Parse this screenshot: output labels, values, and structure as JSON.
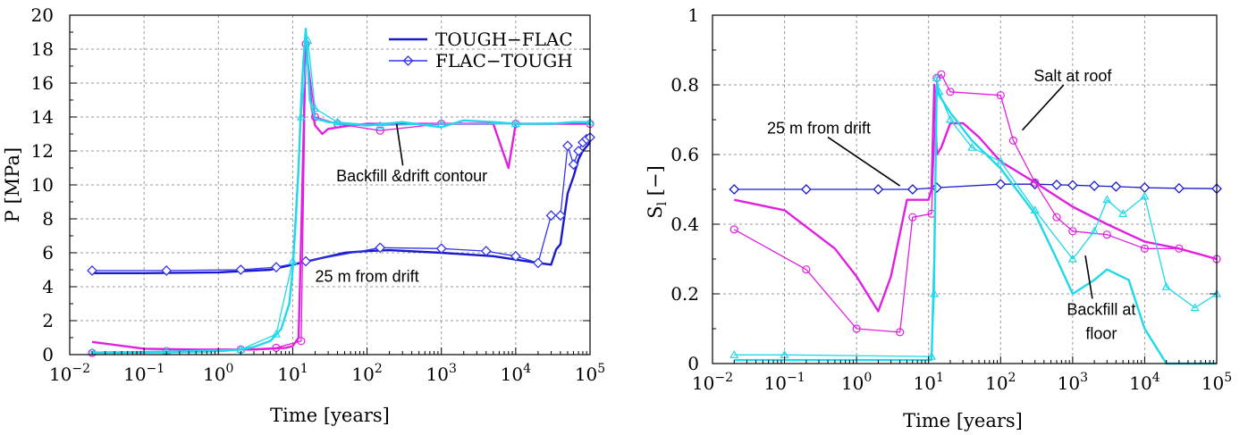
{
  "chart_data": [
    {
      "type": "line",
      "title": "",
      "xlabel": "Time [years]",
      "ylabel": "P [MPa]",
      "xscale": "log",
      "xlim": [
        0.01,
        100000
      ],
      "ylim": [
        0,
        20
      ],
      "xticks": [
        {
          "value": 0.01,
          "base": "10",
          "exp": "−2"
        },
        {
          "value": 0.1,
          "base": "10",
          "exp": "−1"
        },
        {
          "value": 1,
          "base": "10",
          "exp": "0"
        },
        {
          "value": 10,
          "base": "10",
          "exp": "1"
        },
        {
          "value": 100,
          "base": "10",
          "exp": "2"
        },
        {
          "value": 1000,
          "base": "10",
          "exp": "3"
        },
        {
          "value": 10000,
          "base": "10",
          "exp": "4"
        },
        {
          "value": 100000,
          "base": "10",
          "exp": "5"
        }
      ],
      "yticks": [
        0,
        2,
        4,
        6,
        8,
        10,
        12,
        14,
        16,
        18,
        20
      ],
      "grid": true,
      "legend": {
        "position": "top-right",
        "entries": [
          {
            "label": "TOUGH−FLAC",
            "color": "#1a1acc",
            "marker": "none"
          },
          {
            "label": "FLAC−TOUGH",
            "color": "#3333ee",
            "marker": "diamond"
          }
        ]
      },
      "annotations": [
        {
          "text": "Backfill &drift contour",
          "x": 400,
          "y": 10.2,
          "pointer_to": [
            250,
            13.6
          ]
        },
        {
          "text": "25 m from drift",
          "x": 100,
          "y": 4.3
        }
      ],
      "series": [
        {
          "name": "TOUGH−FLAC",
          "color": "#1a1acc",
          "marker": "none",
          "x": [
            0.02,
            0.1,
            1,
            5,
            10,
            20,
            50,
            100,
            200,
            1000,
            5000,
            20000,
            30000,
            35000,
            40000,
            50000,
            60000,
            70000,
            80000,
            100000
          ],
          "y": [
            4.8,
            4.8,
            4.85,
            5.0,
            5.3,
            5.6,
            6.0,
            6.1,
            6.15,
            6.0,
            5.8,
            5.4,
            5.3,
            6.2,
            6.5,
            9.5,
            10.5,
            11.5,
            12.0,
            12.5
          ]
        },
        {
          "color": "#3333ee",
          "marker": "diamond",
          "x": [
            0.02,
            0.2,
            2,
            6,
            15,
            150,
            1000,
            4000,
            10000,
            20000,
            30000,
            40000,
            50000,
            60000,
            70000,
            80000,
            90000,
            100000
          ],
          "y": [
            4.95,
            4.95,
            5.0,
            5.15,
            5.5,
            6.3,
            6.25,
            6.1,
            5.8,
            5.4,
            8.2,
            8.2,
            12.3,
            11.2,
            12.0,
            12.5,
            12.7,
            12.8
          ]
        },
        {
          "color": "#e020e0",
          "marker": "none",
          "x": [
            0.02,
            0.1,
            0.5,
            1,
            3,
            5,
            8,
            10,
            12,
            13,
            15,
            18,
            20,
            25,
            30,
            60,
            100,
            300,
            1000,
            5000,
            8000,
            10000,
            30000,
            100000
          ],
          "y": [
            0.75,
            0.35,
            0.3,
            0.3,
            0.3,
            0.35,
            0.4,
            0.5,
            1.0,
            7.0,
            18.5,
            14.5,
            13.5,
            13.0,
            13.3,
            13.5,
            13.6,
            13.6,
            13.6,
            13.6,
            11.0,
            13.6,
            13.6,
            13.6
          ]
        },
        {
          "color": "#e020e0",
          "marker": "circle",
          "x": [
            0.02,
            0.2,
            2,
            6,
            13,
            15,
            20,
            40,
            150,
            1000,
            10000,
            100000
          ],
          "y": [
            0.1,
            0.2,
            0.3,
            0.4,
            0.8,
            18.3,
            14.0,
            13.6,
            13.2,
            13.6,
            13.6,
            13.6
          ]
        },
        {
          "color": "#20d8e8",
          "marker": "none",
          "x": [
            0.02,
            0.1,
            0.5,
            1,
            2,
            3,
            5,
            7,
            9,
            10,
            11,
            12,
            13,
            14,
            15,
            17,
            20,
            25,
            30,
            50,
            100,
            300,
            1000,
            2000,
            5000,
            10000,
            30000,
            60000,
            100000
          ],
          "y": [
            0.1,
            0.12,
            0.15,
            0.2,
            0.3,
            0.45,
            0.8,
            1.5,
            3.0,
            5.0,
            8.0,
            11.0,
            15.0,
            17.5,
            19.2,
            15.0,
            13.9,
            13.8,
            13.7,
            13.6,
            13.5,
            13.7,
            13.4,
            13.8,
            13.7,
            13.6,
            13.6,
            13.7,
            13.7
          ]
        },
        {
          "color": "#20d8e8",
          "marker": "triangle",
          "x": [
            0.02,
            0.2,
            2,
            6,
            10,
            13,
            16,
            20,
            40,
            150,
            1000,
            10000,
            100000
          ],
          "y": [
            0.15,
            0.2,
            0.3,
            1.2,
            5.5,
            14.0,
            18.5,
            14.5,
            13.7,
            13.5,
            13.6,
            13.6,
            13.7
          ]
        }
      ]
    },
    {
      "type": "line",
      "title": "",
      "xlabel": "Time [years]",
      "ylabel": "S",
      "ylabel_sub": "l",
      "ylabel_unit": " [−]",
      "xscale": "log",
      "xlim": [
        0.01,
        100000
      ],
      "ylim": [
        0,
        1
      ],
      "xticks": [
        {
          "value": 0.01,
          "base": "10",
          "exp": "−2"
        },
        {
          "value": 0.1,
          "base": "10",
          "exp": "−1"
        },
        {
          "value": 1,
          "base": "10",
          "exp": "0"
        },
        {
          "value": 10,
          "base": "10",
          "exp": "1"
        },
        {
          "value": 100,
          "base": "10",
          "exp": "2"
        },
        {
          "value": 1000,
          "base": "10",
          "exp": "3"
        },
        {
          "value": 10000,
          "base": "10",
          "exp": "4"
        },
        {
          "value": 100000,
          "base": "10",
          "exp": "5"
        }
      ],
      "yticks": [
        0,
        0.2,
        0.4,
        0.6,
        0.8,
        1
      ],
      "ytick_labels": [
        "0",
        "0.2",
        "0.4",
        "0.6",
        "0.8",
        "1"
      ],
      "grid": true,
      "annotations": [
        {
          "text": "Salt at roof",
          "x": 1000,
          "y": 0.81,
          "pointer_to": [
            200,
            0.67
          ]
        },
        {
          "text": "25 m from drift",
          "x": 0.3,
          "y": 0.66,
          "pointer_to": [
            4,
            0.51
          ]
        },
        {
          "text": "Backfill at",
          "x": 2500,
          "y": 0.14,
          "pointer_to": [
            1500,
            0.31
          ]
        },
        {
          "text": "floor",
          "x": 2500,
          "y": 0.07
        }
      ],
      "series": [
        {
          "color": "#1a1acc",
          "marker": "diamond",
          "x": [
            0.02,
            0.2,
            2,
            6,
            13,
            100,
            300,
            600,
            1000,
            2000,
            4000,
            10000,
            30000,
            100000
          ],
          "y": [
            0.5,
            0.5,
            0.5,
            0.5,
            0.505,
            0.515,
            0.515,
            0.513,
            0.512,
            0.51,
            0.508,
            0.505,
            0.503,
            0.502
          ]
        },
        {
          "color": "#e020e0",
          "marker": "none",
          "x": [
            0.02,
            0.1,
            0.5,
            1,
            2,
            3,
            5,
            6,
            10,
            11,
            12,
            13,
            15,
            20,
            30,
            50,
            100,
            300,
            1000,
            3000,
            10000,
            30000,
            100000
          ],
          "y": [
            0.47,
            0.44,
            0.33,
            0.25,
            0.15,
            0.25,
            0.47,
            0.47,
            0.47,
            0.5,
            0.8,
            0.6,
            0.62,
            0.69,
            0.69,
            0.65,
            0.58,
            0.52,
            0.45,
            0.4,
            0.35,
            0.33,
            0.3
          ]
        },
        {
          "color": "#e020e0",
          "marker": "circle",
          "x": [
            0.02,
            0.2,
            1,
            4,
            6,
            11,
            13,
            15,
            20,
            100,
            150,
            300,
            600,
            1000,
            3000,
            10000,
            30000,
            100000
          ],
          "y": [
            0.385,
            0.27,
            0.1,
            0.09,
            0.42,
            0.43,
            0.82,
            0.83,
            0.78,
            0.77,
            0.64,
            0.52,
            0.42,
            0.38,
            0.37,
            0.33,
            0.33,
            0.3
          ]
        },
        {
          "color": "#20d8e8",
          "marker": "none",
          "x": [
            0.02,
            0.1,
            11,
            12,
            13,
            14,
            20,
            40,
            100,
            300,
            600,
            1000,
            2000,
            3000,
            6000,
            10000,
            20000,
            100000
          ],
          "y": [
            0.01,
            0.01,
            0.01,
            0.3,
            0.8,
            0.77,
            0.72,
            0.64,
            0.56,
            0.43,
            0.3,
            0.2,
            0.24,
            0.27,
            0.24,
            0.1,
            0.0,
            0.0
          ]
        },
        {
          "color": "#20d8e8",
          "marker": "triangle",
          "x": [
            0.02,
            0.1,
            11,
            12,
            13,
            14,
            20,
            40,
            100,
            300,
            1000,
            2000,
            3000,
            5000,
            10000,
            20000,
            50000,
            100000
          ],
          "y": [
            0.025,
            0.025,
            0.02,
            0.2,
            0.82,
            0.78,
            0.7,
            0.62,
            0.58,
            0.44,
            0.3,
            0.38,
            0.47,
            0.43,
            0.48,
            0.22,
            0.16,
            0.2
          ]
        }
      ]
    }
  ]
}
